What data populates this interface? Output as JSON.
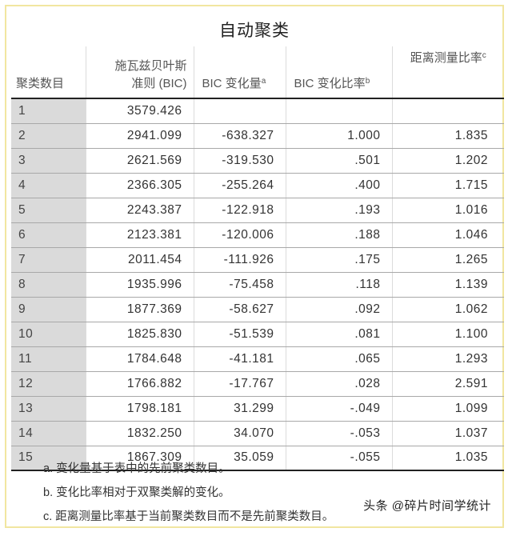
{
  "title": "自动聚类",
  "table": {
    "headers": [
      {
        "label": "聚类数目",
        "sup": ""
      },
      {
        "label_line1": "施瓦兹贝叶斯",
        "label_line2": "准则 (BIC)",
        "sup": ""
      },
      {
        "label": "BIC 变化量",
        "sup": "a"
      },
      {
        "label": "BIC 变化比率",
        "sup": "b"
      },
      {
        "label": "距离测量比率",
        "sup": "c"
      }
    ],
    "rows": [
      {
        "n": "1",
        "bic": "3579.426",
        "change": "",
        "ratio": "",
        "dist": ""
      },
      {
        "n": "2",
        "bic": "2941.099",
        "change": "-638.327",
        "ratio": "1.000",
        "dist": "1.835"
      },
      {
        "n": "3",
        "bic": "2621.569",
        "change": "-319.530",
        "ratio": ".501",
        "dist": "1.202"
      },
      {
        "n": "4",
        "bic": "2366.305",
        "change": "-255.264",
        "ratio": ".400",
        "dist": "1.715"
      },
      {
        "n": "5",
        "bic": "2243.387",
        "change": "-122.918",
        "ratio": ".193",
        "dist": "1.016"
      },
      {
        "n": "6",
        "bic": "2123.381",
        "change": "-120.006",
        "ratio": ".188",
        "dist": "1.046"
      },
      {
        "n": "7",
        "bic": "2011.454",
        "change": "-111.926",
        "ratio": ".175",
        "dist": "1.265"
      },
      {
        "n": "8",
        "bic": "1935.996",
        "change": "-75.458",
        "ratio": ".118",
        "dist": "1.139"
      },
      {
        "n": "9",
        "bic": "1877.369",
        "change": "-58.627",
        "ratio": ".092",
        "dist": "1.062"
      },
      {
        "n": "10",
        "bic": "1825.830",
        "change": "-51.539",
        "ratio": ".081",
        "dist": "1.100"
      },
      {
        "n": "11",
        "bic": "1784.648",
        "change": "-41.181",
        "ratio": ".065",
        "dist": "1.293"
      },
      {
        "n": "12",
        "bic": "1766.882",
        "change": "-17.767",
        "ratio": ".028",
        "dist": "2.591"
      },
      {
        "n": "13",
        "bic": "1798.181",
        "change": "31.299",
        "ratio": "-.049",
        "dist": "1.099"
      },
      {
        "n": "14",
        "bic": "1832.250",
        "change": "34.070",
        "ratio": "-.053",
        "dist": "1.037"
      },
      {
        "n": "15",
        "bic": "1867.309",
        "change": "35.059",
        "ratio": "-.055",
        "dist": "1.035"
      }
    ]
  },
  "notes": [
    "a. 变化量基于表中的先前聚类数目。",
    "b. 变化比率相对于双聚类解的变化。",
    "c. 距离测量比率基于当前聚类数目而不是先前聚类数目。"
  ],
  "watermark": "头条 @碎片时间学统计",
  "colors": {
    "frame_border": "#f1e6a0",
    "row_header_bg": "#dadada",
    "rule_dark": "#222222"
  }
}
